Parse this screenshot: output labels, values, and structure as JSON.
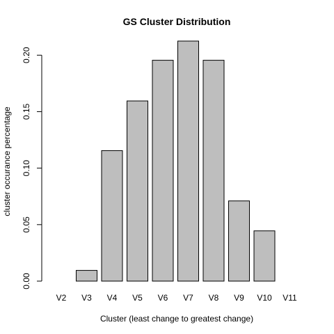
{
  "chart_data": {
    "type": "bar",
    "title": "GS Cluster Distribution",
    "xlabel": "Cluster (least change to greatest change)",
    "ylabel": "cluster occurance percentage",
    "categories": [
      "V2",
      "V3",
      "V4",
      "V5",
      "V6",
      "V7",
      "V8",
      "V9",
      "V10",
      "V11"
    ],
    "values": [
      0.0,
      0.0095,
      0.1155,
      0.1595,
      0.1955,
      0.2125,
      0.1955,
      0.071,
      0.0445,
      0.0
    ],
    "ylim": [
      0,
      0.2125
    ],
    "yticks": [
      0.0,
      0.05,
      0.1,
      0.15,
      0.2
    ],
    "ytick_labels": [
      "0.00",
      "0.05",
      "0.10",
      "0.15",
      "0.20"
    ],
    "bar_color": "#bebebe",
    "grid": false,
    "legend": "none"
  }
}
